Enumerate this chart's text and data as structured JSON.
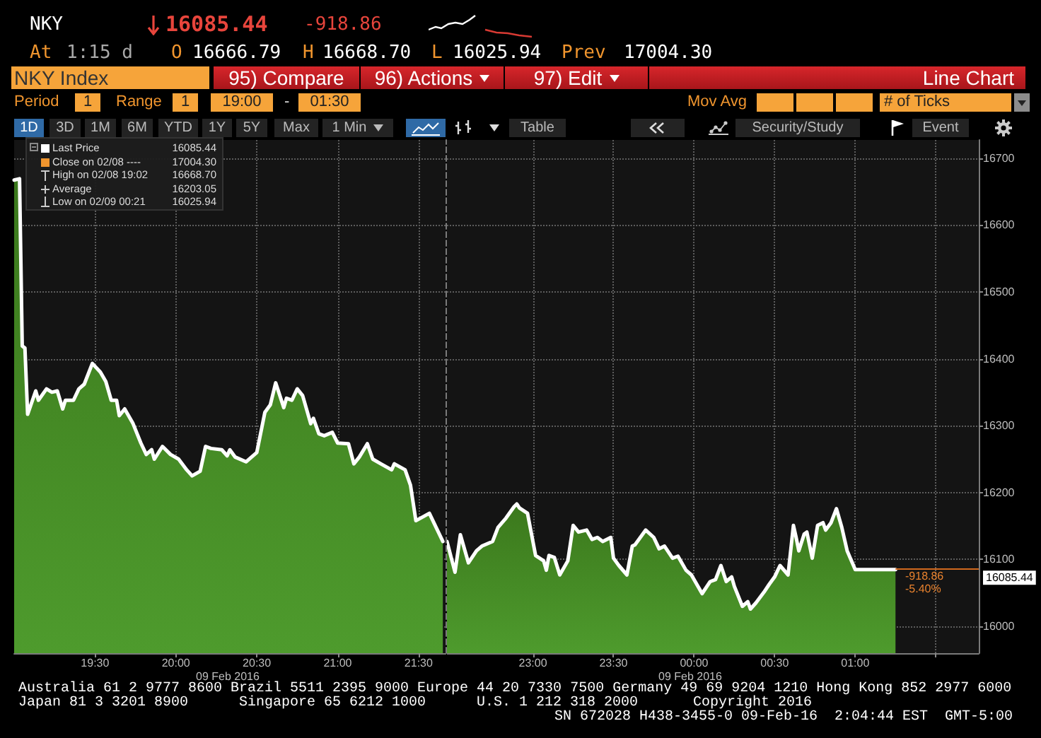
{
  "chart_data": [
    {
      "type": "area",
      "title": "NKY",
      "x": [
        "2016-02-08T19:00",
        "2016-02-08T19:02",
        "2016-02-08T19:03",
        "2016-02-08T19:04",
        "2016-02-08T19:05",
        "2016-02-08T19:08",
        "2016-02-08T19:09",
        "2016-02-08T19:12",
        "2016-02-08T19:14",
        "2016-02-08T19:16",
        "2016-02-08T19:18",
        "2016-02-08T19:19",
        "2016-02-08T19:22",
        "2016-02-08T19:24",
        "2016-02-08T19:26",
        "2016-02-08T19:29",
        "2016-02-08T19:32",
        "2016-02-08T19:34",
        "2016-02-08T19:36",
        "2016-02-08T19:38",
        "2016-02-08T19:39",
        "2016-02-08T19:41",
        "2016-02-08T19:44",
        "2016-02-08T19:47",
        "2016-02-08T19:49",
        "2016-02-08T19:51",
        "2016-02-08T19:52",
        "2016-02-08T19:55",
        "2016-02-08T19:58",
        "2016-02-08T20:01",
        "2016-02-08T20:04",
        "2016-02-08T20:06",
        "2016-02-08T20:09",
        "2016-02-08T20:11",
        "2016-02-08T20:13",
        "2016-02-08T20:17",
        "2016-02-08T20:19",
        "2016-02-08T20:20",
        "2016-02-08T20:22",
        "2016-02-08T20:26",
        "2016-02-08T20:30",
        "2016-02-08T20:33",
        "2016-02-08T20:35",
        "2016-02-08T20:37",
        "2016-02-08T20:40",
        "2016-02-08T20:41",
        "2016-02-08T20:43",
        "2016-02-08T20:45",
        "2016-02-08T20:47",
        "2016-02-08T20:50",
        "2016-02-08T20:51",
        "2016-02-08T20:53",
        "2016-02-08T20:55",
        "2016-02-08T20:58",
        "2016-02-08T21:00",
        "2016-02-08T21:04",
        "2016-02-08T21:06",
        "2016-02-08T21:08",
        "2016-02-08T21:11",
        "2016-02-08T21:13",
        "2016-02-08T21:16",
        "2016-02-08T21:20",
        "2016-02-08T21:21",
        "2016-02-08T21:25",
        "2016-02-08T21:27",
        "2016-02-08T21:29",
        "2016-02-08T21:34",
        "2016-02-08T21:39"
      ],
      "series": [
        {
          "name": "Last Price",
          "color": "#ffffff",
          "values": [
            16667,
            16669,
            16419,
            16416,
            16317,
            16352,
            16338,
            16355,
            16350,
            16352,
            16325,
            16338,
            16338,
            16355,
            16362,
            16393,
            16380,
            16366,
            16338,
            16338,
            16315,
            16325,
            16304,
            16274,
            16257,
            16264,
            16250,
            16269,
            16257,
            16250,
            16234,
            16225,
            16232,
            16269,
            16266,
            16264,
            16255,
            16264,
            16253,
            16246,
            16260,
            16320,
            16331,
            16364,
            16327,
            16341,
            16338,
            16355,
            16345,
            16303,
            16311,
            16288,
            16285,
            16290,
            16274,
            16273,
            16243,
            16253,
            16273,
            16250,
            16243,
            16234,
            16243,
            16234,
            16211,
            16158,
            16169,
            16127
          ]
        }
      ],
      "xlim": [
        "2016-02-08T19:00",
        "2016-02-08T21:40"
      ],
      "xticks": [
        {
          "value": "2016-02-08T19:30",
          "label": "19:30"
        },
        {
          "value": "2016-02-08T20:00",
          "label": "20:00"
        },
        {
          "value": "2016-02-08T20:30",
          "label": "20:30"
        },
        {
          "value": "2016-02-08T21:00",
          "label": "21:00"
        },
        {
          "value": "2016-02-08T21:30",
          "label": "21:30"
        }
      ],
      "ylim": [
        15960,
        16727
      ],
      "yticks": [
        16000,
        16100,
        16200,
        16300,
        16400,
        16500,
        16600,
        16700
      ],
      "grid": true,
      "legend": "top left",
      "tick_labels": "x",
      "annotations": [
        "16085.44",
        "-918.86",
        "At",
        "1:15 d",
        "O",
        "16666.79",
        "H",
        "16668.70",
        "L",
        "16025.94",
        "Prev",
        "17004.30",
        "NKY Index",
        "95) Compare",
        "96) Actions",
        "97) Edit",
        "Line Chart",
        "Period",
        "1",
        "Range",
        "1",
        "19:00",
        "-",
        "01:30",
        "Mov Avg",
        "# of Ticks",
        "1D",
        "3D",
        "1M",
        "6M",
        "YTD",
        "1Y",
        "5Y",
        "Max",
        "1 Min",
        "Table",
        "Security/Study",
        "Event",
        "16085.44",
        "Close on 02/08 ----",
        "17004.30",
        "High on 02/08 19:02",
        "16668.70",
        "Average",
        "16203.05",
        "Low on 02/09 00:21",
        "16025.94",
        "09 Feb 2016",
        "Australia 61 2 9777 8600 Brazil 5511 2395 9000 Europe 44 20 7330 7500 Germany 49 69 9204 1210 Hong Kong 852 2977 6000",
        "Japan 81 3 3201 8900",
        "Singapore 65 6212 1000",
        "U.S. 1 212 318 2000",
        "Copyright 2016",
        "SN 672028 H438-3455-0 09-Feb-16  2:04:44 EST  GMT-5:00"
      ]
    },
    {
      "type": "area",
      "color": "#ffffff",
      "x": [
        "2016-02-08T22:28",
        "2016-02-08T22:31",
        "2016-02-08T22:33",
        "2016-02-08T22:36",
        "2016-02-08T22:39",
        "2016-02-08T22:41",
        "2016-02-08T22:45",
        "2016-02-08T22:47",
        "2016-02-08T22:50",
        "2016-02-08T22:53",
        "2016-02-08T22:54",
        "2016-02-08T22:55",
        "2016-02-08T22:58",
        "2016-02-08T23:01",
        "2016-02-08T23:04",
        "2016-02-08T23:05",
        "2016-02-08T23:06",
        "2016-02-08T23:08",
        "2016-02-08T23:10",
        "2016-02-08T23:13",
        "2016-02-08T23:15",
        "2016-02-08T23:17",
        "2016-02-08T23:20",
        "2016-02-08T23:22",
        "2016-02-08T23:24",
        "2016-02-08T23:26",
        "2016-02-08T23:29",
        "2016-02-08T23:30",
        "2016-02-08T23:32",
        "2016-02-08T23:35",
        "2016-02-08T23:37",
        "2016-02-08T23:38",
        "2016-02-08T23:42",
        "2016-02-08T23:45",
        "2016-02-08T23:47",
        "2016-02-08T23:49",
        "2016-02-08T23:52",
        "2016-02-08T23:54",
        "2016-02-08T23:57",
        "2016-02-08T23:59",
        "2016-02-09T00:03",
        "2016-02-09T00:06",
        "2016-02-09T00:08",
        "2016-02-09T00:10",
        "2016-02-09T00:12",
        "2016-02-09T00:14",
        "2016-02-09T00:15",
        "2016-02-09T00:18",
        "2016-02-09T00:20",
        "2016-02-09T00:21",
        "2016-02-09T00:23",
        "2016-02-09T00:26",
        "2016-02-09T00:28",
        "2016-02-09T00:30",
        "2016-02-09T00:32",
        "2016-02-09T00:35",
        "2016-02-09T00:37",
        "2016-02-09T00:38",
        "2016-02-09T00:39",
        "2016-02-09T00:41",
        "2016-02-09T00:42",
        "2016-02-09T00:44",
        "2016-02-09T00:46",
        "2016-02-09T00:48",
        "2016-02-09T00:49",
        "2016-02-09T00:51",
        "2016-02-09T00:53",
        "2016-02-09T00:55",
        "2016-02-09T00:57",
        "2016-02-09T01:00",
        "2016-02-09T01:15"
      ],
      "values": [
        16127,
        16081,
        16137,
        16095,
        16113,
        16120,
        16127,
        16148,
        16162,
        16179,
        16183,
        16177,
        16169,
        16106,
        16098,
        16084,
        16106,
        16103,
        16077,
        16098,
        16151,
        16141,
        16144,
        16130,
        16133,
        16127,
        16133,
        16102,
        16091,
        16077,
        16120,
        16122,
        16144,
        16133,
        16116,
        16120,
        16102,
        16105,
        16084,
        16077,
        16049,
        16067,
        16070,
        16091,
        16067,
        16074,
        16060,
        16030,
        16037,
        16026,
        16035,
        16051,
        16063,
        16074,
        16091,
        16077,
        16151,
        16133,
        16113,
        16138,
        16141,
        16102,
        16151,
        16155,
        16144,
        16155,
        16176,
        16148,
        16113,
        16085,
        16085
      ],
      "xlim": [
        "2016-02-08T22:28",
        "2016-02-09T01:46"
      ],
      "xticks": [
        {
          "value": "2016-02-08T23:00",
          "label": "23:00"
        },
        {
          "value": "2016-02-08T23:30",
          "label": "23:30"
        },
        {
          "value": "2016-02-09T00:00",
          "label": "00:00"
        },
        {
          "value": "2016-02-09T00:30",
          "label": "00:30"
        },
        {
          "value": "2016-02-09T01:00",
          "label": "01:00"
        },
        {
          "value": "2016-02-09T01:30",
          "label": null
        }
      ],
      "ylim": [
        15960,
        16727
      ],
      "yticks": [
        16000,
        16100,
        16200,
        16300,
        16400,
        16500,
        16600,
        16700
      ],
      "grid": true,
      "ref_lines": [
        {
          "axis": "y",
          "value": 16085.44,
          "label": "16085.44",
          "color": "#d2691e"
        }
      ],
      "annotations": [
        "09 Feb 2016",
        "-918.86",
        "-5.40%"
      ]
    }
  ]
}
